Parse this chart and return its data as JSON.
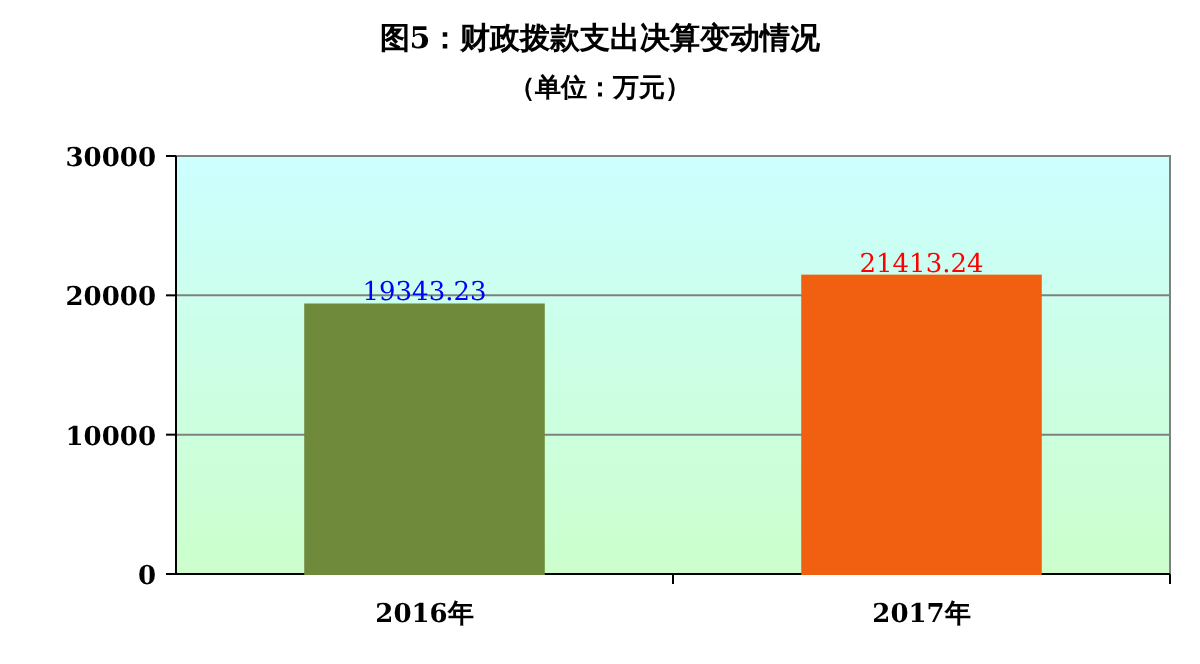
{
  "chart_data": {
    "type": "bar",
    "title": "图5：财政拨款支出决算变动情况",
    "subtitle": "（单位：万元）",
    "categories": [
      "2016年",
      "2017年"
    ],
    "values": [
      19343.23,
      21413.24
    ],
    "colors": [
      "#6e8a3a",
      "#f06010"
    ],
    "ylim": [
      0,
      30000
    ],
    "yticks": [
      0,
      10000,
      20000,
      30000
    ],
    "grid": "y",
    "data_labels": true
  }
}
